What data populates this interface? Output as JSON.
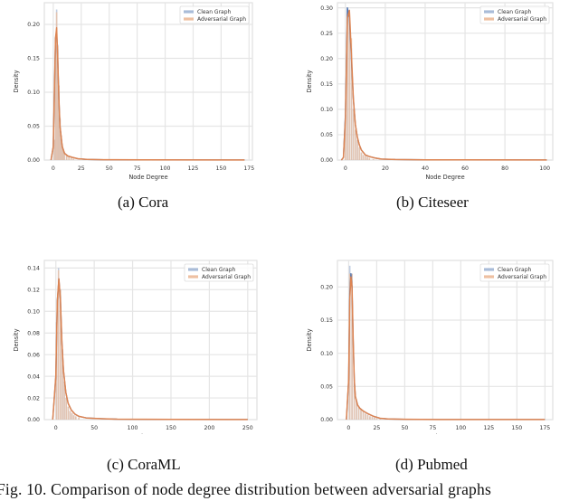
{
  "figure": {
    "caption": "Fig. 10.  Comparison of node degree distribution between adversarial graphs",
    "subcaptions": [
      "(a)  Cora",
      "(b)  Citeseer",
      "(c)  CoraML",
      "(d)  Pubmed"
    ]
  },
  "colors": {
    "clean": "#4c72b0",
    "clean_hist": "#a9bcd8",
    "adversarial": "#dd8452",
    "adversarial_hist": "#eec0a2",
    "grid": "#e5e5e5",
    "spine": "#e0e0e0"
  },
  "chart_data": [
    {
      "id": "cora",
      "type": "bar+line",
      "title": "(a) Cora",
      "xlabel": "Node Degree",
      "ylabel": "Density",
      "xlim": [
        -8,
        178
      ],
      "ylim": [
        0,
        0.232
      ],
      "xticks": [
        0,
        25,
        50,
        75,
        100,
        125,
        150,
        175
      ],
      "xtick_labels": [
        "0",
        "25",
        "50",
        "75",
        "100",
        "125",
        "150",
        "175"
      ],
      "yticks": [
        0.0,
        0.05,
        0.1,
        0.15,
        0.2
      ],
      "ytick_labels": [
        "0.00",
        "0.05",
        "0.10",
        "0.15",
        "0.20"
      ],
      "legend": [
        "Clean Graph",
        "Adversarial Graph"
      ],
      "legend_position": "upper right",
      "grid": true,
      "hist": {
        "bin_centers": [
          1,
          2,
          3,
          4,
          5,
          6,
          7,
          8,
          9,
          10,
          12,
          14,
          16,
          18
        ],
        "clean": [
          0.03,
          0.18,
          0.222,
          0.17,
          0.11,
          0.06,
          0.035,
          0.022,
          0.014,
          0.01,
          0.007,
          0.005,
          0.003,
          0.002
        ],
        "adversarial": [
          0.03,
          0.17,
          0.218,
          0.168,
          0.11,
          0.062,
          0.036,
          0.023,
          0.015,
          0.01,
          0.007,
          0.005,
          0.003,
          0.002
        ]
      },
      "series": [
        {
          "name": "Clean Graph",
          "x": [
            -2,
            0,
            1,
            2,
            3,
            4,
            5,
            6,
            8,
            10,
            13,
            17,
            22,
            30,
            45,
            80,
            171
          ],
          "values": [
            0,
            0.02,
            0.1,
            0.18,
            0.19,
            0.15,
            0.09,
            0.05,
            0.02,
            0.01,
            0.006,
            0.004,
            0.002,
            0.001,
            0.0005,
            0.0002,
            0.0001
          ]
        },
        {
          "name": "Adversarial Graph",
          "x": [
            -2,
            0,
            1,
            2,
            3,
            4,
            5,
            6,
            8,
            10,
            13,
            17,
            22,
            30,
            45,
            80,
            171
          ],
          "values": [
            0,
            0.02,
            0.1,
            0.18,
            0.195,
            0.15,
            0.09,
            0.05,
            0.02,
            0.01,
            0.006,
            0.004,
            0.002,
            0.001,
            0.0005,
            0.0002,
            0.0001
          ]
        }
      ]
    },
    {
      "id": "citeseer",
      "type": "bar+line",
      "title": "(b) Citeseer",
      "xlabel": "Node Degree",
      "ylabel": "Density",
      "xlim": [
        -4,
        104
      ],
      "ylim": [
        0,
        0.31
      ],
      "xticks": [
        0,
        20,
        40,
        60,
        80,
        100
      ],
      "xtick_labels": [
        "0",
        "20",
        "40",
        "60",
        "80",
        "100"
      ],
      "yticks": [
        0.0,
        0.05,
        0.1,
        0.15,
        0.2,
        0.25,
        0.3
      ],
      "ytick_labels": [
        "0.00",
        "0.05",
        "0.10",
        "0.15",
        "0.20",
        "0.25",
        "0.30"
      ],
      "legend": [
        "Clean Graph",
        "Adversarial Graph"
      ],
      "legend_position": "upper right",
      "grid": true,
      "hist": {
        "bin_centers": [
          0,
          1,
          2,
          3,
          4,
          5,
          6,
          7,
          8,
          9,
          10,
          11,
          12,
          14
        ],
        "clean": [
          0.09,
          0.3,
          0.28,
          0.22,
          0.1,
          0.06,
          0.04,
          0.025,
          0.015,
          0.01,
          0.008,
          0.006,
          0.004,
          0.002
        ],
        "adversarial": [
          0.09,
          0.29,
          0.29,
          0.24,
          0.1,
          0.06,
          0.04,
          0.025,
          0.015,
          0.01,
          0.008,
          0.006,
          0.004,
          0.002
        ]
      },
      "series": [
        {
          "name": "Clean Graph",
          "x": [
            -2,
            -1,
            0,
            1,
            2,
            3,
            4,
            5,
            6,
            7,
            8,
            10,
            12,
            15,
            18,
            25,
            40,
            101
          ],
          "values": [
            0,
            0.005,
            0.09,
            0.3,
            0.28,
            0.2,
            0.12,
            0.07,
            0.045,
            0.03,
            0.02,
            0.01,
            0.007,
            0.004,
            0.002,
            0.001,
            0.0005,
            0.0001
          ]
        },
        {
          "name": "Adversarial Graph",
          "x": [
            -2,
            -1,
            0,
            1,
            2,
            3,
            4,
            5,
            6,
            7,
            8,
            10,
            12,
            15,
            18,
            25,
            40,
            101
          ],
          "values": [
            0,
            0.005,
            0.08,
            0.28,
            0.295,
            0.21,
            0.12,
            0.07,
            0.045,
            0.03,
            0.02,
            0.01,
            0.007,
            0.004,
            0.002,
            0.001,
            0.0005,
            0.0001
          ]
        }
      ]
    },
    {
      "id": "coraml",
      "type": "bar+line",
      "title": "(c) CoraML",
      "xlabel": "Node Degree",
      "ylabel": "Density",
      "xlim": [
        -15,
        262
      ],
      "ylim": [
        0,
        0.147
      ],
      "xticks": [
        0,
        50,
        100,
        150,
        200,
        250
      ],
      "xtick_labels": [
        "0",
        "50",
        "100",
        "150",
        "200",
        "250"
      ],
      "yticks": [
        0.0,
        0.02,
        0.04,
        0.06,
        0.08,
        0.1,
        0.12,
        0.14
      ],
      "ytick_labels": [
        "0.00",
        "0.02",
        "0.04",
        "0.06",
        "0.08",
        "0.10",
        "0.12",
        "0.14"
      ],
      "legend": [
        "Clean Graph",
        "Adversarial Graph"
      ],
      "legend_position": "upper right",
      "grid": true,
      "hist": {
        "bin_centers": [
          1,
          3.5,
          6,
          8.5,
          11,
          13.5,
          16,
          18.5,
          21,
          23.5,
          26,
          30
        ],
        "clean": [
          0.09,
          0.14,
          0.12,
          0.065,
          0.035,
          0.02,
          0.012,
          0.008,
          0.006,
          0.004,
          0.003,
          0.002
        ],
        "adversarial": [
          0.09,
          0.138,
          0.12,
          0.065,
          0.035,
          0.02,
          0.012,
          0.008,
          0.006,
          0.004,
          0.003,
          0.002
        ]
      },
      "series": [
        {
          "name": "Clean Graph",
          "x": [
            -4,
            0,
            2,
            4,
            6,
            8,
            10,
            13,
            16,
            20,
            25,
            30,
            40,
            60,
            80,
            150,
            250
          ],
          "values": [
            0,
            0.04,
            0.11,
            0.13,
            0.11,
            0.07,
            0.045,
            0.025,
            0.015,
            0.009,
            0.005,
            0.003,
            0.0015,
            0.0008,
            0.0004,
            0.0002,
            0.0001
          ]
        },
        {
          "name": "Adversarial Graph",
          "x": [
            -4,
            0,
            2,
            4,
            6,
            8,
            10,
            13,
            16,
            20,
            25,
            30,
            40,
            60,
            80,
            150,
            250
          ],
          "values": [
            0,
            0.04,
            0.11,
            0.13,
            0.11,
            0.07,
            0.045,
            0.025,
            0.015,
            0.009,
            0.005,
            0.003,
            0.0015,
            0.0008,
            0.0004,
            0.0002,
            0.0001
          ]
        }
      ]
    },
    {
      "id": "pubmed",
      "type": "bar+line",
      "title": "(d) Pubmed",
      "xlabel": "Node Degree",
      "ylabel": "Density",
      "xlim": [
        -10,
        182
      ],
      "ylim": [
        0,
        0.24
      ],
      "xticks": [
        0,
        25,
        50,
        75,
        100,
        125,
        150,
        175
      ],
      "xtick_labels": [
        "0",
        "25",
        "50",
        "75",
        "100",
        "125",
        "150",
        "175"
      ],
      "yticks": [
        0.0,
        0.05,
        0.1,
        0.15,
        0.2
      ],
      "ytick_labels": [
        "0.00",
        "0.05",
        "0.10",
        "0.15",
        "0.20"
      ],
      "legend": [
        "Clean Graph",
        "Adversarial Graph"
      ],
      "legend_position": "upper right",
      "grid": true,
      "hist": {
        "bin_centers": [
          1,
          3,
          5,
          7,
          9,
          11,
          13,
          15,
          17,
          19,
          21,
          23,
          25,
          28
        ],
        "clean": [
          0.232,
          0.22,
          0.06,
          0.028,
          0.02,
          0.015,
          0.012,
          0.009,
          0.007,
          0.005,
          0.004,
          0.003,
          0.002,
          0.001
        ],
        "adversarial": [
          0.22,
          0.22,
          0.06,
          0.028,
          0.02,
          0.015,
          0.012,
          0.009,
          0.007,
          0.005,
          0.004,
          0.003,
          0.002,
          0.001
        ]
      },
      "series": [
        {
          "name": "Clean Graph",
          "x": [
            -2,
            0,
            1,
            2,
            3,
            4,
            5,
            6,
            8,
            10,
            13,
            17,
            22,
            28,
            35,
            50,
            80,
            175
          ],
          "values": [
            0,
            0.06,
            0.19,
            0.22,
            0.2,
            0.12,
            0.06,
            0.035,
            0.022,
            0.017,
            0.013,
            0.009,
            0.005,
            0.002,
            0.001,
            0.0005,
            0.0002,
            0.0001
          ]
        },
        {
          "name": "Adversarial Graph",
          "x": [
            -2,
            0,
            1,
            2,
            3,
            4,
            5,
            6,
            8,
            10,
            13,
            17,
            22,
            28,
            35,
            50,
            80,
            175
          ],
          "values": [
            0,
            0.06,
            0.18,
            0.215,
            0.2,
            0.12,
            0.06,
            0.035,
            0.022,
            0.017,
            0.013,
            0.009,
            0.005,
            0.002,
            0.001,
            0.0005,
            0.0002,
            0.0001
          ]
        }
      ]
    }
  ]
}
